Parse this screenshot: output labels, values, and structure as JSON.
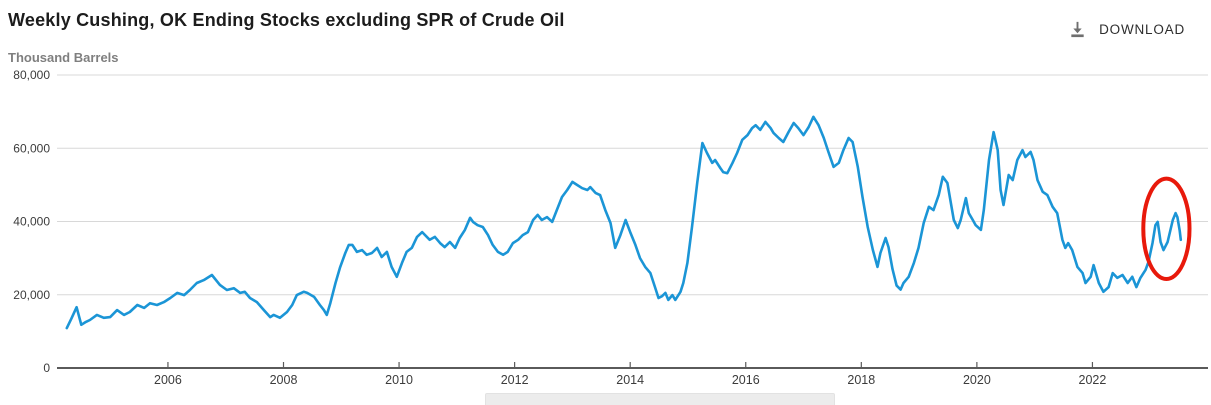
{
  "header": {
    "title": "Weekly Cushing, OK Ending Stocks excluding SPR of Crude Oil",
    "download_label": "DOWNLOAD"
  },
  "chart": {
    "units_label": "Thousand Barrels"
  },
  "colors": {
    "line": "#1b95d6",
    "annotation_red": "#e8190b",
    "grid": "#d8d8d8",
    "axis": "#5a5a5a",
    "tick_text": "#3c3c3c",
    "download_icon": "#6f6f6f"
  },
  "chart_data": {
    "type": "line",
    "title": "Weekly Cushing, OK Ending Stocks excluding SPR of Crude Oil",
    "ylabel": "Thousand Barrels",
    "xlabel": "",
    "xlim": [
      2004.08,
      2024.0
    ],
    "ylim": [
      0,
      80000
    ],
    "grid": "horizontal-only",
    "legend": "none",
    "y_ticks": [
      {
        "value": 0,
        "label": "0"
      },
      {
        "value": 20000,
        "label": "20,000"
      },
      {
        "value": 40000,
        "label": "40,000"
      },
      {
        "value": 60000,
        "label": "60,000"
      },
      {
        "value": 80000,
        "label": "80,000"
      }
    ],
    "x_ticks": [
      {
        "value": 2006,
        "label": "2006"
      },
      {
        "value": 2008,
        "label": "2008"
      },
      {
        "value": 2010,
        "label": "2010"
      },
      {
        "value": 2012,
        "label": "2012"
      },
      {
        "value": 2014,
        "label": "2014"
      },
      {
        "value": 2016,
        "label": "2016"
      },
      {
        "value": 2018,
        "label": "2018"
      },
      {
        "value": 2020,
        "label": "2020"
      },
      {
        "value": 2022,
        "label": "2022"
      }
    ],
    "annotation": {
      "type": "ellipse",
      "x": 2023.28,
      "y": 38000,
      "rx_years": 0.4,
      "ry_value": 13700,
      "stroke_width": 4
    },
    "series": [
      {
        "name": "Weekly Cushing, OK Ending Stocks excluding SPR of Crude Oil",
        "points": [
          [
            2004.25,
            10900
          ],
          [
            2004.33,
            13500
          ],
          [
            2004.42,
            16600
          ],
          [
            2004.5,
            11800
          ],
          [
            2004.58,
            12600
          ],
          [
            2004.65,
            13100
          ],
          [
            2004.77,
            14500
          ],
          [
            2004.89,
            13700
          ],
          [
            2005.0,
            13900
          ],
          [
            2005.12,
            15800
          ],
          [
            2005.24,
            14500
          ],
          [
            2005.34,
            15300
          ],
          [
            2005.47,
            17200
          ],
          [
            2005.59,
            16400
          ],
          [
            2005.69,
            17700
          ],
          [
            2005.81,
            17200
          ],
          [
            2005.93,
            18000
          ],
          [
            2006.04,
            19100
          ],
          [
            2006.16,
            20500
          ],
          [
            2006.28,
            19900
          ],
          [
            2006.38,
            21300
          ],
          [
            2006.5,
            23200
          ],
          [
            2006.62,
            24000
          ],
          [
            2006.76,
            25400
          ],
          [
            2006.9,
            22700
          ],
          [
            2007.02,
            21300
          ],
          [
            2007.14,
            21800
          ],
          [
            2007.25,
            20500
          ],
          [
            2007.33,
            20800
          ],
          [
            2007.42,
            19100
          ],
          [
            2007.54,
            18000
          ],
          [
            2007.66,
            15800
          ],
          [
            2007.77,
            13900
          ],
          [
            2007.83,
            14500
          ],
          [
            2007.94,
            13700
          ],
          [
            2008.06,
            15300
          ],
          [
            2008.15,
            17200
          ],
          [
            2008.23,
            19900
          ],
          [
            2008.35,
            20800
          ],
          [
            2008.41,
            20500
          ],
          [
            2008.53,
            19400
          ],
          [
            2008.63,
            17200
          ],
          [
            2008.7,
            15800
          ],
          [
            2008.75,
            14500
          ],
          [
            2008.81,
            17700
          ],
          [
            2008.9,
            23200
          ],
          [
            2008.98,
            27500
          ],
          [
            2009.07,
            31400
          ],
          [
            2009.13,
            33600
          ],
          [
            2009.19,
            33600
          ],
          [
            2009.27,
            31700
          ],
          [
            2009.36,
            32200
          ],
          [
            2009.44,
            30900
          ],
          [
            2009.53,
            31400
          ],
          [
            2009.62,
            32800
          ],
          [
            2009.7,
            30300
          ],
          [
            2009.79,
            31700
          ],
          [
            2009.87,
            27600
          ],
          [
            2009.96,
            24900
          ],
          [
            2010.05,
            28700
          ],
          [
            2010.13,
            31700
          ],
          [
            2010.22,
            32800
          ],
          [
            2010.31,
            35800
          ],
          [
            2010.4,
            37100
          ],
          [
            2010.45,
            36300
          ],
          [
            2010.53,
            35000
          ],
          [
            2010.62,
            35800
          ],
          [
            2010.71,
            34100
          ],
          [
            2010.79,
            33000
          ],
          [
            2010.88,
            34400
          ],
          [
            2010.97,
            32800
          ],
          [
            2011.05,
            35500
          ],
          [
            2011.14,
            37700
          ],
          [
            2011.23,
            41000
          ],
          [
            2011.28,
            39900
          ],
          [
            2011.36,
            39000
          ],
          [
            2011.45,
            38500
          ],
          [
            2011.54,
            36300
          ],
          [
            2011.62,
            33600
          ],
          [
            2011.71,
            31700
          ],
          [
            2011.8,
            30900
          ],
          [
            2011.88,
            31700
          ],
          [
            2011.97,
            34100
          ],
          [
            2012.06,
            35000
          ],
          [
            2012.14,
            36300
          ],
          [
            2012.23,
            37100
          ],
          [
            2012.32,
            40400
          ],
          [
            2012.4,
            41800
          ],
          [
            2012.47,
            40400
          ],
          [
            2012.56,
            41200
          ],
          [
            2012.65,
            39900
          ],
          [
            2012.73,
            43100
          ],
          [
            2012.82,
            46700
          ],
          [
            2012.91,
            48600
          ],
          [
            2013.0,
            50800
          ],
          [
            2013.08,
            50000
          ],
          [
            2013.17,
            49100
          ],
          [
            2013.26,
            48600
          ],
          [
            2013.31,
            49400
          ],
          [
            2013.4,
            47800
          ],
          [
            2013.48,
            47200
          ],
          [
            2013.57,
            43100
          ],
          [
            2013.66,
            39600
          ],
          [
            2013.74,
            32800
          ],
          [
            2013.83,
            36300
          ],
          [
            2013.92,
            40400
          ],
          [
            2014.0,
            37100
          ],
          [
            2014.09,
            33600
          ],
          [
            2014.17,
            30000
          ],
          [
            2014.26,
            27600
          ],
          [
            2014.35,
            25900
          ],
          [
            2014.43,
            22100
          ],
          [
            2014.49,
            19100
          ],
          [
            2014.55,
            19600
          ],
          [
            2014.61,
            20500
          ],
          [
            2014.66,
            18600
          ],
          [
            2014.73,
            19900
          ],
          [
            2014.78,
            18600
          ],
          [
            2014.87,
            20800
          ],
          [
            2014.92,
            23200
          ],
          [
            2014.99,
            28700
          ],
          [
            2015.07,
            38500
          ],
          [
            2015.16,
            50500
          ],
          [
            2015.25,
            61400
          ],
          [
            2015.33,
            58700
          ],
          [
            2015.42,
            56000
          ],
          [
            2015.47,
            56800
          ],
          [
            2015.56,
            54600
          ],
          [
            2015.61,
            53500
          ],
          [
            2015.68,
            53200
          ],
          [
            2015.77,
            56000
          ],
          [
            2015.85,
            58700
          ],
          [
            2015.94,
            62300
          ],
          [
            2016.03,
            63600
          ],
          [
            2016.11,
            65500
          ],
          [
            2016.17,
            66300
          ],
          [
            2016.25,
            65000
          ],
          [
            2016.34,
            67200
          ],
          [
            2016.43,
            65500
          ],
          [
            2016.48,
            64200
          ],
          [
            2016.57,
            62800
          ],
          [
            2016.65,
            61700
          ],
          [
            2016.74,
            64400
          ],
          [
            2016.83,
            66900
          ],
          [
            2016.91,
            65500
          ],
          [
            2017.0,
            63600
          ],
          [
            2017.09,
            65800
          ],
          [
            2017.17,
            68600
          ],
          [
            2017.26,
            66300
          ],
          [
            2017.35,
            62800
          ],
          [
            2017.43,
            59000
          ],
          [
            2017.52,
            54900
          ],
          [
            2017.61,
            56000
          ],
          [
            2017.69,
            59500
          ],
          [
            2017.78,
            62800
          ],
          [
            2017.85,
            61700
          ],
          [
            2017.94,
            54900
          ],
          [
            2018.02,
            46700
          ],
          [
            2018.11,
            38500
          ],
          [
            2018.2,
            32200
          ],
          [
            2018.28,
            27600
          ],
          [
            2018.33,
            31400
          ],
          [
            2018.42,
            35500
          ],
          [
            2018.47,
            33000
          ],
          [
            2018.54,
            27000
          ],
          [
            2018.61,
            22500
          ],
          [
            2018.68,
            21400
          ],
          [
            2018.73,
            23200
          ],
          [
            2018.82,
            24900
          ],
          [
            2018.91,
            28700
          ],
          [
            2018.99,
            32800
          ],
          [
            2019.08,
            39600
          ],
          [
            2019.17,
            44000
          ],
          [
            2019.25,
            43100
          ],
          [
            2019.34,
            47200
          ],
          [
            2019.41,
            52200
          ],
          [
            2019.49,
            50500
          ],
          [
            2019.6,
            40400
          ],
          [
            2019.67,
            38200
          ],
          [
            2019.72,
            40400
          ],
          [
            2019.81,
            46400
          ],
          [
            2019.86,
            42300
          ],
          [
            2019.93,
            40400
          ],
          [
            2019.98,
            39000
          ],
          [
            2020.07,
            37700
          ],
          [
            2020.12,
            43100
          ],
          [
            2020.21,
            56800
          ],
          [
            2020.29,
            64400
          ],
          [
            2020.36,
            59500
          ],
          [
            2020.41,
            48600
          ],
          [
            2020.46,
            44500
          ],
          [
            2020.55,
            52700
          ],
          [
            2020.62,
            51300
          ],
          [
            2020.7,
            56800
          ],
          [
            2020.79,
            59500
          ],
          [
            2020.84,
            57600
          ],
          [
            2020.93,
            59000
          ],
          [
            2020.98,
            56800
          ],
          [
            2021.05,
            51300
          ],
          [
            2021.14,
            48100
          ],
          [
            2021.22,
            47200
          ],
          [
            2021.31,
            44000
          ],
          [
            2021.39,
            42300
          ],
          [
            2021.48,
            35000
          ],
          [
            2021.53,
            32800
          ],
          [
            2021.58,
            34100
          ],
          [
            2021.65,
            32200
          ],
          [
            2021.74,
            27600
          ],
          [
            2021.83,
            25900
          ],
          [
            2021.88,
            23200
          ],
          [
            2021.97,
            24900
          ],
          [
            2022.02,
            28100
          ],
          [
            2022.11,
            23200
          ],
          [
            2022.19,
            20800
          ],
          [
            2022.28,
            22100
          ],
          [
            2022.35,
            25900
          ],
          [
            2022.43,
            24600
          ],
          [
            2022.52,
            25400
          ],
          [
            2022.61,
            23200
          ],
          [
            2022.69,
            24900
          ],
          [
            2022.76,
            22100
          ],
          [
            2022.83,
            24600
          ],
          [
            2022.92,
            26800
          ],
          [
            2022.97,
            29000
          ],
          [
            2023.04,
            34100
          ],
          [
            2023.09,
            39000
          ],
          [
            2023.13,
            39900
          ],
          [
            2023.18,
            34400
          ],
          [
            2023.23,
            32200
          ],
          [
            2023.3,
            34400
          ],
          [
            2023.39,
            40400
          ],
          [
            2023.44,
            42300
          ],
          [
            2023.47,
            41200
          ],
          [
            2023.51,
            37500
          ],
          [
            2023.53,
            35000
          ]
        ]
      }
    ]
  }
}
